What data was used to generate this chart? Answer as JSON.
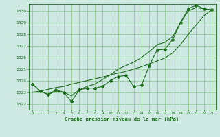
{
  "x": [
    0,
    1,
    2,
    3,
    4,
    5,
    6,
    7,
    8,
    9,
    10,
    11,
    12,
    13,
    14,
    15,
    16,
    17,
    18,
    19,
    20,
    21,
    22,
    23
  ],
  "y_main": [
    1023.7,
    1023.1,
    1022.8,
    1023.2,
    1023.0,
    1022.2,
    1023.2,
    1023.35,
    1023.35,
    1023.5,
    1024.0,
    1024.35,
    1024.45,
    1023.5,
    1023.6,
    1025.3,
    1026.65,
    1026.7,
    1027.55,
    1029.0,
    1030.2,
    1030.5,
    1030.2,
    1030.1
  ],
  "y_smooth": [
    1023.7,
    1023.1,
    1022.8,
    1023.1,
    1023.0,
    1022.7,
    1023.2,
    1023.5,
    1023.7,
    1024.1,
    1024.5,
    1025.0,
    1025.3,
    1025.6,
    1026.0,
    1026.5,
    1027.1,
    1027.3,
    1027.8,
    1029.0,
    1030.0,
    1030.3,
    1030.2,
    1030.1
  ],
  "y_trend": [
    1023.0,
    1023.1,
    1023.25,
    1023.4,
    1023.5,
    1023.7,
    1023.85,
    1024.0,
    1024.15,
    1024.3,
    1024.5,
    1024.65,
    1024.8,
    1025.0,
    1025.2,
    1025.45,
    1025.7,
    1025.95,
    1026.4,
    1027.1,
    1028.0,
    1028.8,
    1029.6,
    1030.1
  ],
  "line_color": "#1a6b1a",
  "bg_color": "#cce8e0",
  "grid_color": "#88c488",
  "xlabel": "Graphe pression niveau de la mer (hPa)",
  "ylim": [
    1021.5,
    1030.6
  ],
  "yticks": [
    1022,
    1023,
    1024,
    1025,
    1026,
    1027,
    1028,
    1029,
    1030
  ],
  "xticks": [
    0,
    1,
    2,
    3,
    4,
    5,
    6,
    7,
    8,
    9,
    10,
    11,
    12,
    13,
    14,
    15,
    16,
    17,
    18,
    19,
    20,
    21,
    22,
    23
  ]
}
